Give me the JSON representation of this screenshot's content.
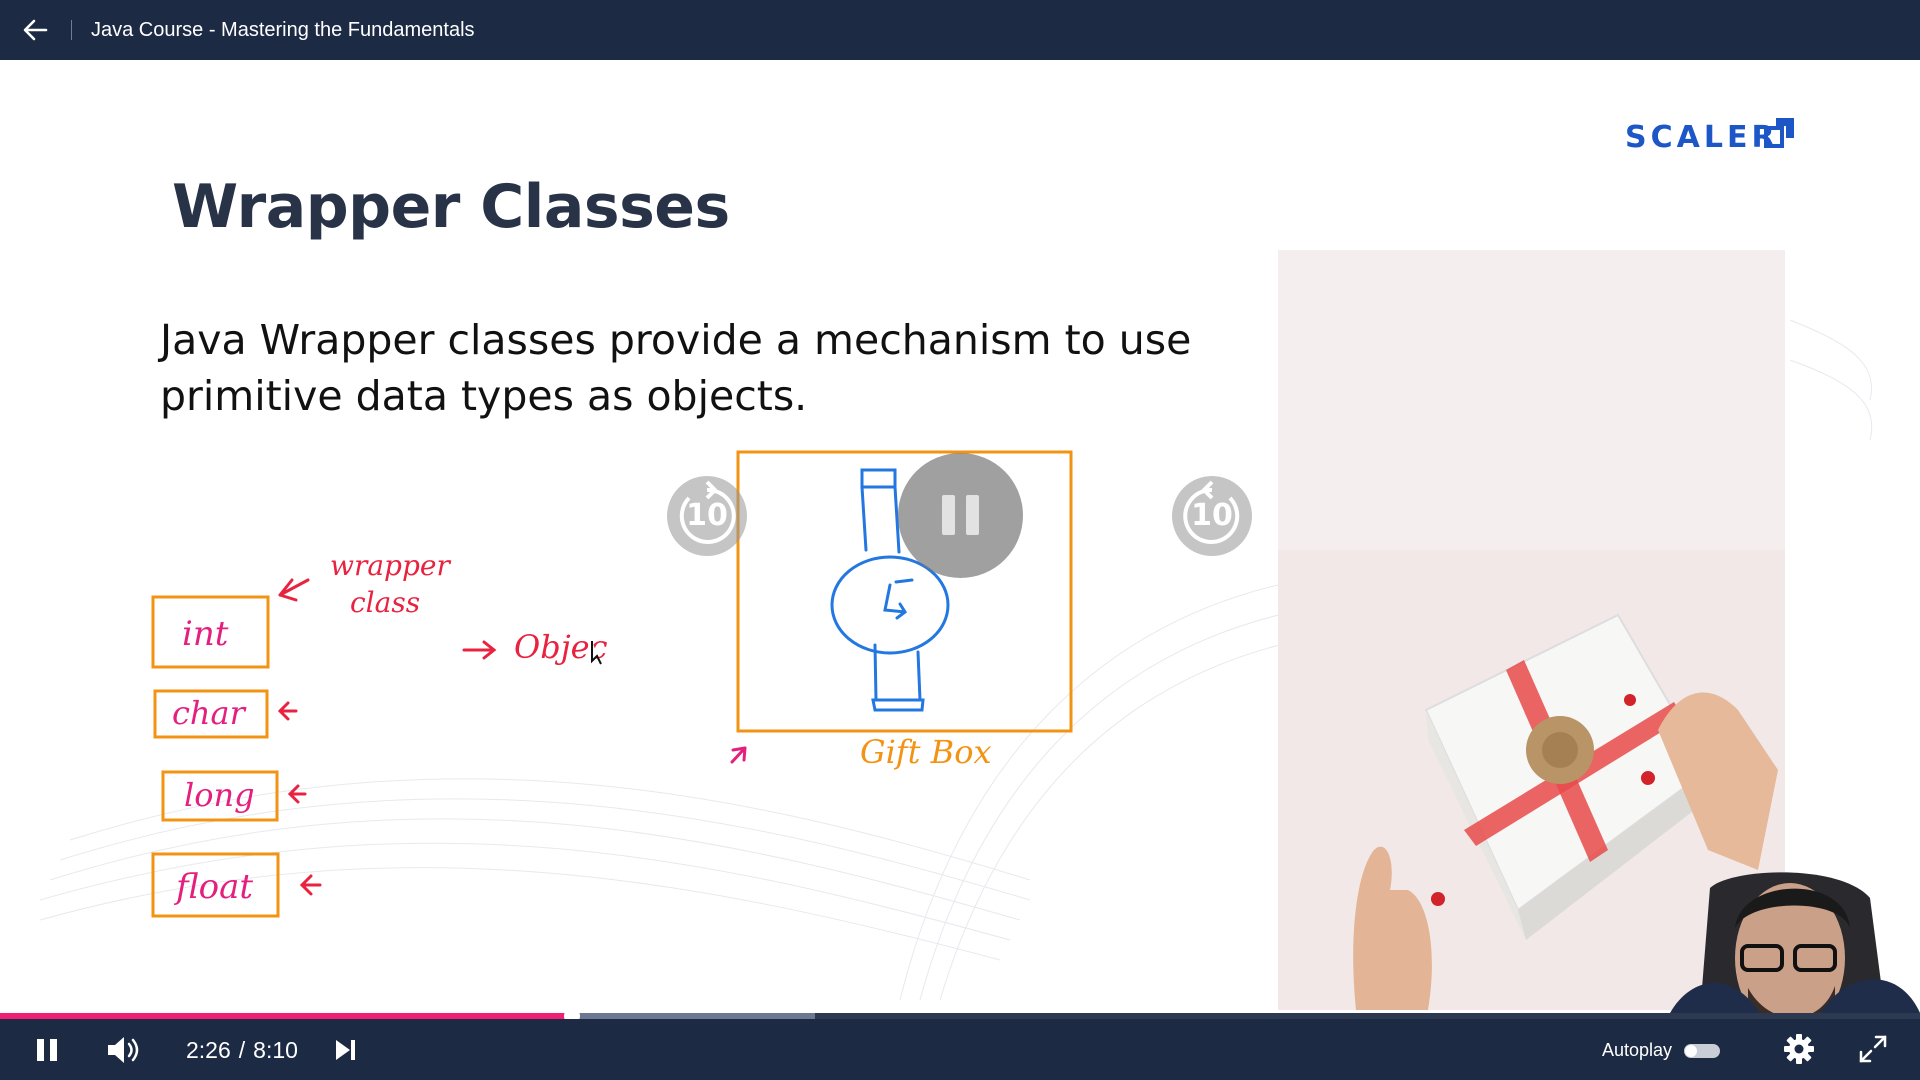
{
  "header": {
    "title": "Java Course - Mastering the Fundamentals"
  },
  "slide": {
    "brand": "SCALER",
    "title": "Wrapper Classes",
    "body": "Java Wrapper classes provide a mechanism to use primitive data types as objects.",
    "annotations": {
      "wrapper_class_line1": "wrapper",
      "wrapper_class_line2": "class",
      "object": "Objec",
      "gift_box": "Gift Box",
      "types": [
        "int",
        "char",
        "long",
        "float"
      ]
    },
    "accent_colors": {
      "ink_red": "#e8223f",
      "ink_pink": "#e3207e",
      "box_orange": "#f39314",
      "ink_blue": "#2277e0"
    }
  },
  "overlay": {
    "rewind_label": "10",
    "forward_label": "10",
    "center_icon": "pause-icon"
  },
  "player": {
    "time_current": "2:26",
    "time_separator": "/",
    "time_total": "8:10",
    "progress_played_fraction": 0.2977,
    "progress_buffered_fraction": 0.4245,
    "autoplay_label": "Autoplay",
    "autoplay_on": false,
    "colors": {
      "progress": "#ef1f73",
      "bar": "#1c2a44"
    }
  }
}
